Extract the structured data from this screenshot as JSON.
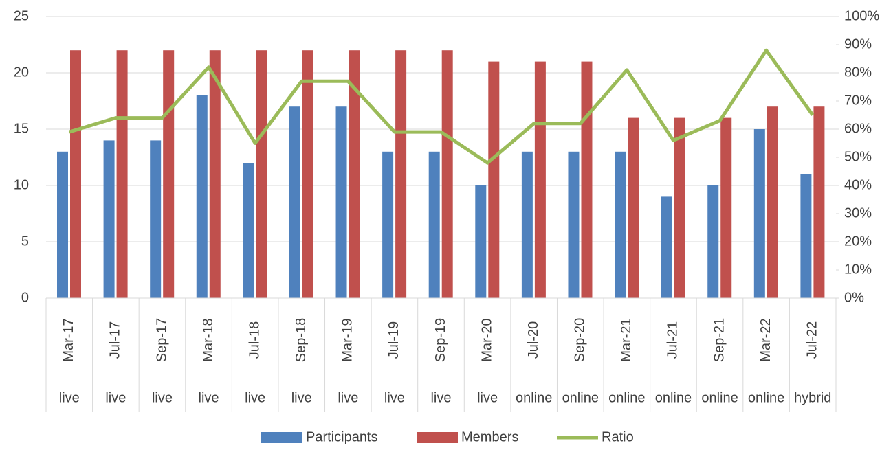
{
  "chart_data": {
    "type": "bar_line",
    "categories": [
      "Mar-17",
      "Jul-17",
      "Sep-17",
      "Mar-18",
      "Jul-18",
      "Sep-18",
      "Mar-19",
      "Jul-19",
      "Sep-19",
      "Mar-20",
      "Jul-20",
      "Sep-20",
      "Mar-21",
      "Jul-21",
      "Sep-21",
      "Mar-22",
      "Jul-22"
    ],
    "category_groups": [
      "live",
      "live",
      "live",
      "live",
      "live",
      "live",
      "live",
      "live",
      "live",
      "live",
      "online",
      "online",
      "online",
      "online",
      "online",
      "online",
      "hybrid"
    ],
    "series": [
      {
        "name": "Participants",
        "color": "#4f81bd",
        "type": "bar",
        "values": [
          13,
          14,
          14,
          18,
          12,
          17,
          17,
          13,
          13,
          10,
          13,
          13,
          13,
          9,
          10,
          15,
          11
        ]
      },
      {
        "name": "Members",
        "color": "#c0504d",
        "type": "bar",
        "values": [
          22,
          22,
          22,
          22,
          22,
          22,
          22,
          22,
          22,
          21,
          21,
          21,
          16,
          16,
          16,
          17,
          17
        ]
      },
      {
        "name": "Ratio",
        "color": "#9bbb59",
        "type": "line",
        "axis": "y2",
        "values": [
          59,
          64,
          64,
          82,
          55,
          77,
          77,
          59,
          59,
          48,
          62,
          62,
          81,
          56,
          63,
          88,
          65
        ]
      }
    ],
    "ylim": [
      0,
      25
    ],
    "yticks": [
      0,
      5,
      10,
      15,
      20,
      25
    ],
    "y2lim": [
      0,
      100
    ],
    "y2ticks": [
      {
        "value": 0,
        "label": "0%"
      },
      {
        "value": 10,
        "label": "10%"
      },
      {
        "value": 20,
        "label": "20%"
      },
      {
        "value": 30,
        "label": "30%"
      },
      {
        "value": 40,
        "label": "40%"
      },
      {
        "value": 50,
        "label": "50%"
      },
      {
        "value": 60,
        "label": "60%"
      },
      {
        "value": 70,
        "label": "70%"
      },
      {
        "value": 80,
        "label": "80%"
      },
      {
        "value": 90,
        "label": "90%"
      },
      {
        "value": 100,
        "label": "100%"
      }
    ],
    "grid": true,
    "legend": "bottom"
  }
}
